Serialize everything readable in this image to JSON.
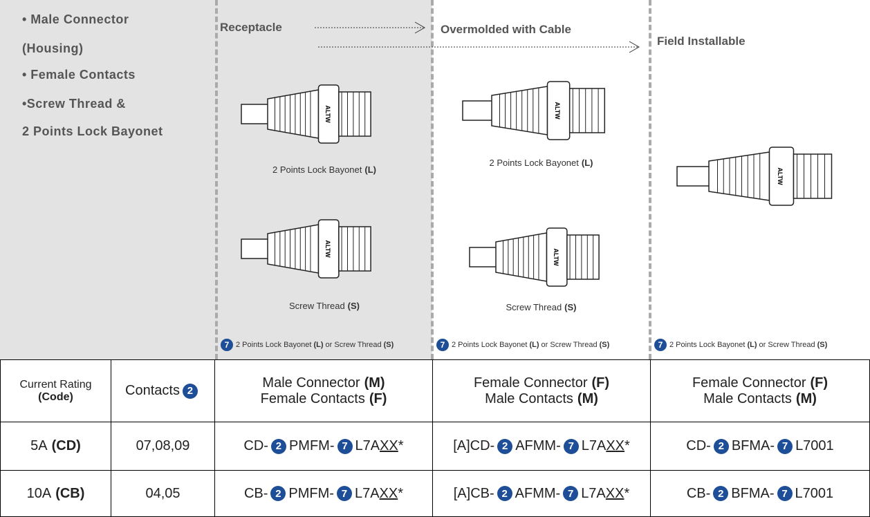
{
  "features": [
    "• Male Connector",
    "(Housing)",
    "• Female Contacts",
    "•Screw Thread &",
    "2 Points Lock Bayonet"
  ],
  "columns": [
    {
      "title": "Receptacle",
      "images": [
        {
          "brand": "ALTW",
          "caption": "2 Points Lock Bayonet",
          "code": "(L)"
        },
        {
          "brand": "ALTW",
          "caption": "Screw Thread",
          "code": "(S)"
        }
      ],
      "note": {
        "badge": "7",
        "option1": "2 Points Lock Bayonet",
        "code1": "(L)",
        "joiner": "or Screw Thread",
        "code2": "(S)"
      }
    },
    {
      "title": "Overmolded with Cable",
      "images": [
        {
          "brand": "ALTW",
          "caption": "2 Points Lock Bayonet",
          "code": "(L)"
        },
        {
          "brand": "ALTW",
          "caption": "Screw Thread",
          "code": "(S)"
        }
      ],
      "note": {
        "badge": "7",
        "option1": "2 Points Lock Bayonet",
        "code1": "(L)",
        "joiner": "or Screw Thread",
        "code2": "(S)"
      }
    },
    {
      "title": "Field Installable",
      "images": [
        {
          "brand": "ALTW"
        }
      ],
      "note": {
        "badge": "7",
        "option1": "2 Points Lock Bayonet",
        "code1": "(L)",
        "joiner": "or Screw Thread",
        "code2": "(S)"
      }
    }
  ],
  "table": {
    "header": {
      "rating": {
        "text": "Current Rating",
        "code": "(Code)"
      },
      "contacts": {
        "text": "Contacts",
        "badge": "2"
      },
      "types": [
        {
          "line1": "Male Connector",
          "code1": "(M)",
          "line2": "Female Contacts",
          "code2": "(F)"
        },
        {
          "line1": "Female Connector",
          "code1": "(F)",
          "line2": "Male Contacts",
          "code2": "(M)"
        },
        {
          "line1": "Female Connector",
          "code1": "(F)",
          "line2": "Male Contacts",
          "code2": "(M)"
        }
      ]
    },
    "rows": [
      {
        "rating": "5A",
        "code": "(CD)",
        "contacts": "07,08,09",
        "parts": [
          {
            "prefix": "CD-",
            "badge1": "2",
            "mid": "PMFM-",
            "badge2": "7",
            "suffix": "L7A",
            "var": "XX",
            "star": "*"
          },
          {
            "prefix": "[A]CD-",
            "badge1": "2",
            "mid": "AFMM-",
            "badge2": "7",
            "suffix": "L7A",
            "var": "XX",
            "star": "*"
          },
          {
            "prefix": "CD-",
            "badge1": "2",
            "mid": "BFMA-",
            "badge2": "7",
            "suffix": "L7001"
          }
        ]
      },
      {
        "rating": "10A",
        "code": "(CB)",
        "contacts": "04,05",
        "parts": [
          {
            "prefix": "CB-",
            "badge1": "2",
            "mid": "PMFM-",
            "badge2": "7",
            "suffix": "L7A",
            "var": "XX",
            "star": "*"
          },
          {
            "prefix": "[A]CB-",
            "badge1": "2",
            "mid": "AFMM-",
            "badge2": "7",
            "suffix": "L7A",
            "var": "XX",
            "star": "*"
          },
          {
            "prefix": "CB-",
            "badge1": "2",
            "mid": "BFMA-",
            "badge2": "7",
            "suffix": "L7001"
          }
        ]
      }
    ]
  }
}
